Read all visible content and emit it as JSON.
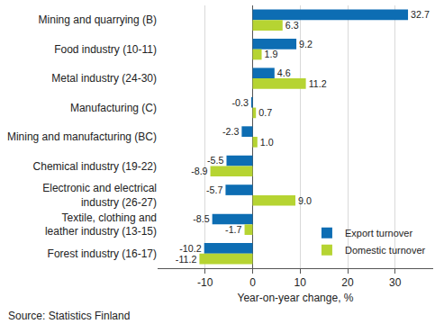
{
  "chart_data": {
    "type": "bar",
    "orientation": "horizontal",
    "categories": [
      "Mining and quarrying (B)",
      "Food industry (10-11)",
      "Metal industry (24-30)",
      "Manufacturing (C)",
      "Mining and manufacturing (BC)",
      "Chemical industry (19-22)",
      "Electronic and electrical\nindustry (26-27)",
      "Textile, clothing and\nleather industry (13-15)",
      "Forest industry (16-17)"
    ],
    "series": [
      {
        "name": "Export turnover",
        "color": "#0d6db3",
        "values": [
          32.7,
          9.2,
          4.6,
          -0.3,
          -2.3,
          -5.5,
          -5.7,
          -8.5,
          -10.2
        ]
      },
      {
        "name": "Domestic turnover",
        "color": "#b6d432",
        "values": [
          6.3,
          1.9,
          11.2,
          0.7,
          1.0,
          -8.9,
          9.0,
          -1.7,
          -11.2
        ],
        "value_labels": [
          "6.3",
          "1.9",
          "11.2",
          "0.7",
          "1.0",
          "-8.9",
          "9.0",
          "-1.7",
          "-11.2"
        ]
      }
    ],
    "xlabel": "Year-on-year change, %",
    "xlim": [
      -20,
      38
    ],
    "xticks": [
      -10,
      0,
      10,
      20,
      30
    ],
    "grid": true,
    "legend": "lower right",
    "data_labels": true,
    "annotations": [
      "Source: Statistics Finland"
    ]
  }
}
